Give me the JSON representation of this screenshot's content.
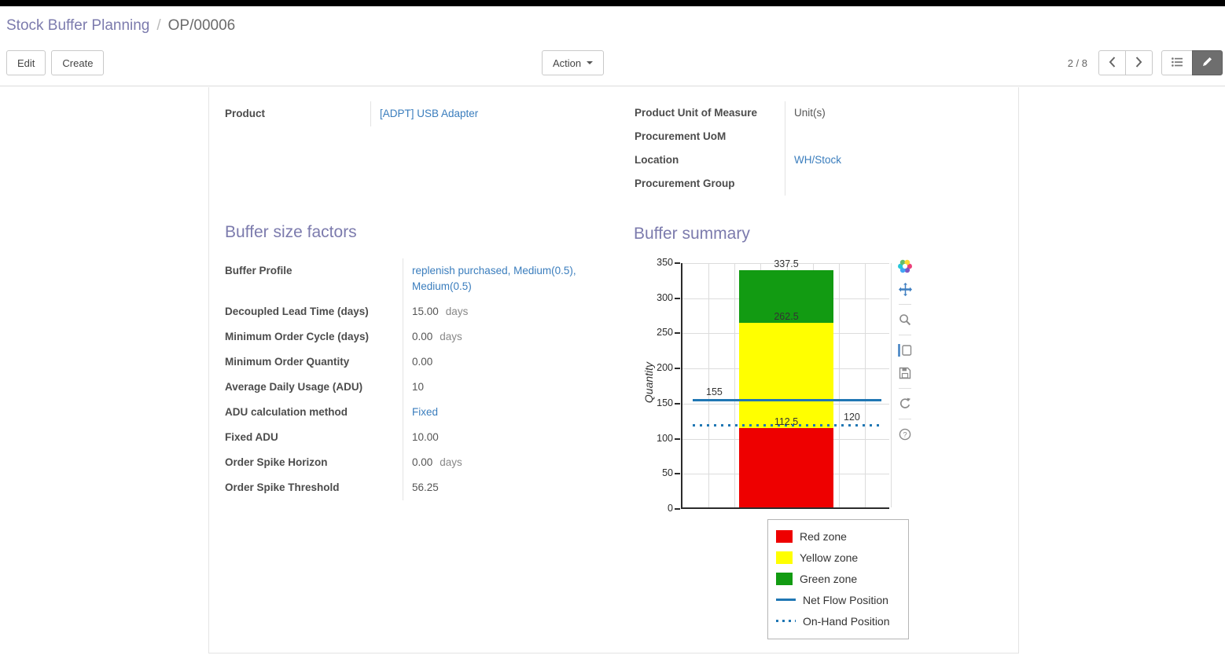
{
  "colors": {
    "heading": "#7c7bad",
    "link": "#3a7dbd",
    "topbar": "#000000"
  },
  "breadcrumb": {
    "parent": "Stock Buffer Planning",
    "separator": "/",
    "current": "OP/00006"
  },
  "actions": {
    "edit": "Edit",
    "create": "Create",
    "action_menu": "Action",
    "pager": "2 / 8"
  },
  "record": {
    "product_label": "Product",
    "product_value": "[ADPT] USB Adapter",
    "info_fields": [
      {
        "label": "Product Unit of Measure",
        "value": "Unit(s)",
        "is_link": false
      },
      {
        "label": "Procurement UoM",
        "value": "",
        "is_link": false
      },
      {
        "label": "Location",
        "value": "WH/Stock",
        "is_link": true
      },
      {
        "label": "Procurement Group",
        "value": "",
        "is_link": false
      }
    ]
  },
  "buffer_size_factors": {
    "title": "Buffer size factors",
    "rows": [
      {
        "label": "Buffer Profile",
        "value": "replenish purchased, Medium(0.5), Medium(0.5)",
        "is_link": true,
        "suffix": ""
      },
      {
        "label": "Decoupled Lead Time (days)",
        "value": "15.00",
        "is_link": false,
        "suffix": "days"
      },
      {
        "label": "Minimum Order Cycle (days)",
        "value": "0.00",
        "is_link": false,
        "suffix": "days"
      },
      {
        "label": "Minimum Order Quantity",
        "value": "0.00",
        "is_link": false,
        "suffix": ""
      },
      {
        "label": "Average Daily Usage (ADU)",
        "value": "10",
        "is_link": false,
        "suffix": ""
      },
      {
        "label": "ADU calculation method",
        "value": "Fixed",
        "is_link": true,
        "suffix": ""
      },
      {
        "label": "Fixed ADU",
        "value": "10.00",
        "is_link": false,
        "suffix": ""
      },
      {
        "label": "Order Spike Horizon",
        "value": "0.00",
        "is_link": false,
        "suffix": "days"
      },
      {
        "label": "Order Spike Threshold",
        "value": "56.25",
        "is_link": false,
        "suffix": ""
      }
    ]
  },
  "buffer_summary": {
    "title": "Buffer summary"
  },
  "chart_data": {
    "type": "bar",
    "title": "",
    "xlabel": "",
    "ylabel": "Quantity",
    "ylim": [
      0,
      350
    ],
    "yticks": [
      0,
      50,
      100,
      150,
      200,
      250,
      300,
      350
    ],
    "grid": true,
    "legend_position": "bottom-right",
    "zones": [
      {
        "name": "Red zone",
        "from": 0,
        "to": 112.5,
        "color": "#ee0000"
      },
      {
        "name": "Yellow zone",
        "from": 112.5,
        "to": 262.5,
        "color": "#ffff00"
      },
      {
        "name": "Green zone",
        "from": 262.5,
        "to": 337.5,
        "color": "#129b12"
      }
    ],
    "lines": [
      {
        "name": "Net Flow Position",
        "value": 155,
        "style": "solid",
        "color": "#2077b4"
      },
      {
        "name": "On-Hand Position",
        "value": 120,
        "style": "dotted",
        "color": "#2077b4"
      }
    ],
    "annotations": [
      {
        "text": "337.5",
        "value": 337.5,
        "align": "center"
      },
      {
        "text": "262.5",
        "value": 262.5,
        "align": "center"
      },
      {
        "text": "155",
        "value": 155,
        "align": "left"
      },
      {
        "text": "112.5",
        "value": 112.5,
        "align": "center"
      },
      {
        "text": "120",
        "value": 120,
        "align": "right"
      }
    ]
  }
}
